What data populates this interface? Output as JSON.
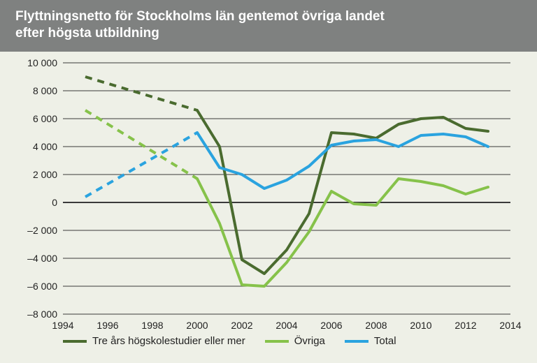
{
  "title_line1": "Flyttningsnetto för Stockholms län gentemot övriga landet",
  "title_line2": "efter högsta utbildning",
  "chart": {
    "type": "line",
    "background_color": "#eef0e7",
    "title_bg": "#7f8180",
    "title_color": "#ffffff",
    "title_fontsize": 19,
    "axis_fontsize": 14,
    "legend_fontsize": 15,
    "xlim": [
      1994,
      2014
    ],
    "ylim": [
      -8000,
      10000
    ],
    "ytick_step": 2000,
    "yticks": [
      -8000,
      -6000,
      -4000,
      -2000,
      0,
      2000,
      4000,
      6000,
      8000,
      10000
    ],
    "ytick_labels": [
      "–8 000",
      "–6 000",
      "–4 000",
      "–2 000",
      "0",
      "2 000",
      "4 000",
      "6 000",
      "8 000",
      "10 000"
    ],
    "xticks": [
      1994,
      1996,
      1998,
      2000,
      2002,
      2004,
      2006,
      2008,
      2010,
      2012,
      2014
    ],
    "xtick_labels": [
      "1994",
      "1996",
      "1998",
      "2000",
      "2002",
      "2004",
      "2006",
      "2008",
      "2010",
      "2012",
      "2014"
    ],
    "grid_color": "#3a3a3a",
    "grid_width": 1,
    "zero_line_width": 2,
    "line_width": 4,
    "series": [
      {
        "id": "tre_ars",
        "label": "Tre års högskolestudier eller mer",
        "color": "#4a6b2f",
        "dashed_segment": {
          "x": [
            1995,
            2000
          ],
          "y": [
            9000,
            6600
          ]
        },
        "solid_segment": {
          "x": [
            2000,
            2001,
            2002,
            2003,
            2004,
            2005,
            2006,
            2007,
            2008,
            2009,
            2010,
            2011,
            2012,
            2013
          ],
          "y": [
            6600,
            4000,
            -4100,
            -5100,
            -3400,
            -800,
            5000,
            4900,
            4600,
            5600,
            6000,
            6100,
            5300,
            5100
          ]
        }
      },
      {
        "id": "ovriga",
        "label": "Övriga",
        "color": "#86c24a",
        "dashed_segment": {
          "x": [
            1995,
            2000
          ],
          "y": [
            6600,
            1700
          ]
        },
        "solid_segment": {
          "x": [
            2000,
            2001,
            2002,
            2003,
            2004,
            2005,
            2006,
            2007,
            2008,
            2009,
            2010,
            2011,
            2012,
            2013
          ],
          "y": [
            1700,
            -1500,
            -5900,
            -6000,
            -4300,
            -2100,
            800,
            -100,
            -200,
            1700,
            1500,
            1200,
            600,
            1100
          ]
        }
      },
      {
        "id": "total",
        "label": "Total",
        "color": "#2aa3df",
        "dashed_segment": {
          "x": [
            1995,
            2000
          ],
          "y": [
            400,
            5000
          ]
        },
        "solid_segment": {
          "x": [
            2000,
            2001,
            2002,
            2003,
            2004,
            2005,
            2006,
            2007,
            2008,
            2009,
            2010,
            2011,
            2012,
            2013
          ],
          "y": [
            5000,
            2500,
            2000,
            1000,
            1600,
            2600,
            4100,
            4400,
            4500,
            4000,
            4800,
            4900,
            4700,
            4000
          ]
        }
      }
    ]
  }
}
